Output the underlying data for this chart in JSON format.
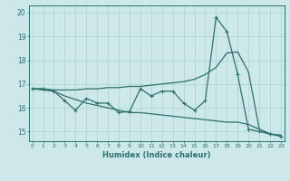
{
  "xlabel": "Humidex (Indice chaleur)",
  "x": [
    0,
    1,
    2,
    3,
    4,
    5,
    6,
    7,
    8,
    9,
    10,
    11,
    12,
    13,
    14,
    15,
    16,
    17,
    18,
    19,
    20,
    21,
    22,
    23
  ],
  "series_upper": [
    16.8,
    16.8,
    16.75,
    16.75,
    16.75,
    16.8,
    16.8,
    16.85,
    16.85,
    16.9,
    16.9,
    16.95,
    17.0,
    17.05,
    17.1,
    17.2,
    17.4,
    17.7,
    18.3,
    18.35,
    17.5,
    15.1,
    14.9,
    14.85
  ],
  "series_mid": [
    16.8,
    16.8,
    16.7,
    16.3,
    15.9,
    16.4,
    16.2,
    16.2,
    15.8,
    15.85,
    16.8,
    16.5,
    16.7,
    16.7,
    16.2,
    15.9,
    16.3,
    19.8,
    19.2,
    17.4,
    15.1,
    15.0,
    14.9,
    14.8
  ],
  "series_lower": [
    16.8,
    16.75,
    16.7,
    16.5,
    16.35,
    16.2,
    16.1,
    16.0,
    15.9,
    15.8,
    15.8,
    15.75,
    15.7,
    15.65,
    15.6,
    15.55,
    15.5,
    15.45,
    15.4,
    15.4,
    15.3,
    15.1,
    14.9,
    14.85
  ],
  "line_color": "#2e7070",
  "bg_color": "#cce8e8",
  "grid_color": "#b0d0d0",
  "ylim": [
    14.6,
    20.3
  ],
  "yticks": [
    15,
    16,
    17,
    18,
    19,
    20
  ],
  "xticks": [
    0,
    1,
    2,
    3,
    4,
    5,
    6,
    7,
    8,
    9,
    10,
    11,
    12,
    13,
    14,
    15,
    16,
    17,
    18,
    19,
    20,
    21,
    22,
    23
  ]
}
